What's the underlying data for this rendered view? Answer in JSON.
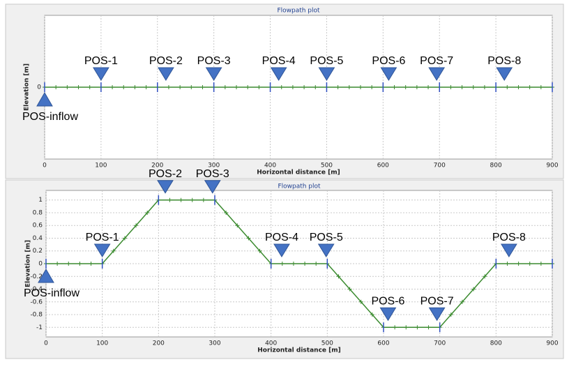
{
  "chart_data": [
    {
      "type": "line",
      "title": "Flowpath plot",
      "xlabel": "Horizontal distance [m]",
      "ylabel": "Elevation [m]",
      "x": [
        0,
        100,
        200,
        300,
        400,
        500,
        600,
        700,
        800,
        900
      ],
      "series": [
        {
          "color": "#3a8a2e",
          "values": [
            0,
            0,
            0,
            0,
            0,
            0,
            0,
            0,
            0,
            0
          ]
        }
      ],
      "xlim": [
        0,
        900
      ],
      "xticks": [
        0,
        100,
        200,
        300,
        400,
        500,
        600,
        700,
        800,
        900
      ],
      "ylim": [
        -1,
        1
      ],
      "yticks": [
        0
      ],
      "grid": true,
      "annotations": [
        {
          "text": "POS-inflow",
          "x": 0
        },
        {
          "text": "POS-1",
          "x": 100
        },
        {
          "text": "POS-2",
          "x": 215
        },
        {
          "text": "POS-3",
          "x": 300
        },
        {
          "text": "POS-4",
          "x": 415
        },
        {
          "text": "POS-5",
          "x": 500
        },
        {
          "text": "POS-6",
          "x": 610
        },
        {
          "text": "POS-7",
          "x": 695
        },
        {
          "text": "POS-8",
          "x": 815
        }
      ]
    },
    {
      "type": "line",
      "title": "Flowpath plot",
      "xlabel": "Horizontal distance [m]",
      "ylabel": "Elevation [m]",
      "x": [
        0,
        100,
        200,
        300,
        400,
        500,
        600,
        700,
        800,
        900
      ],
      "series": [
        {
          "color": "#3a8a2e",
          "values": [
            0,
            0,
            1,
            1,
            0,
            0,
            -1,
            -1,
            0,
            0
          ]
        }
      ],
      "xlim": [
        0,
        900
      ],
      "xticks": [
        0,
        100,
        200,
        300,
        400,
        500,
        600,
        700,
        800,
        900
      ],
      "ylim": [
        -1.15,
        1.15
      ],
      "yticks": [
        1,
        0.8,
        0.6,
        0.4,
        0.2,
        0,
        -0.2,
        -0.4,
        -0.6,
        -0.8,
        -1
      ],
      "grid": true,
      "annotations": [
        {
          "text": "POS-inflow",
          "x": 0
        },
        {
          "text": "POS-1",
          "x": 100
        },
        {
          "text": "POS-2",
          "x": 212
        },
        {
          "text": "POS-3",
          "x": 296
        },
        {
          "text": "POS-4",
          "x": 419
        },
        {
          "text": "POS-5",
          "x": 498
        },
        {
          "text": "POS-6",
          "x": 608
        },
        {
          "text": "POS-7",
          "x": 695
        },
        {
          "text": "POS-8",
          "x": 823
        }
      ]
    }
  ]
}
